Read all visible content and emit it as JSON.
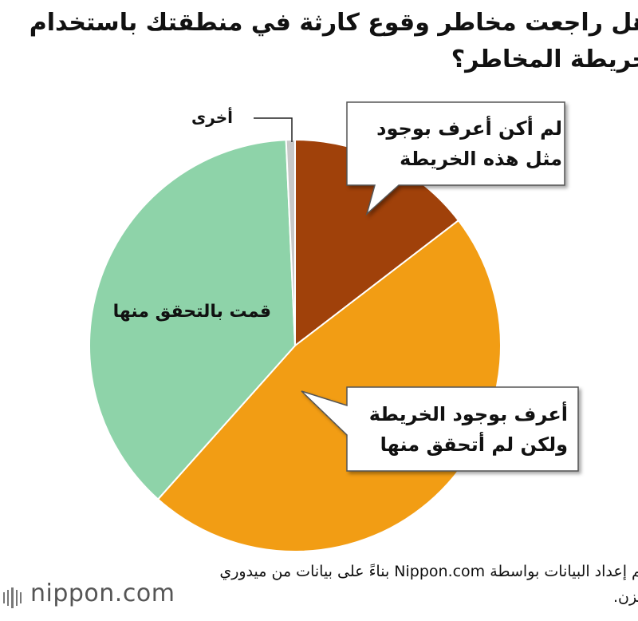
{
  "chart_data": {
    "type": "pie",
    "title": "هل راجعت مخاطر وقوع كارثة في منطقتك باستخدام خريطة المخاطر؟",
    "categories": [
      "لم أكن أعرف بوجود مثل هذه الخريطة",
      "أعرف بوجود الخريطة ولكن لم أتحقق منها",
      "قمت بالتحقق منها",
      "أخرى"
    ],
    "values": [
      14.6,
      47.0,
      37.7,
      0.7
    ],
    "colors": [
      "#a0410a",
      "#f29d14",
      "#8ed3a9",
      "#c8c8c8"
    ],
    "source": "تم إعداد البيانات بواسطة Nippon.com بناءً على بيانات من ميدوري أنزن.",
    "brand": "nippon.com"
  }
}
